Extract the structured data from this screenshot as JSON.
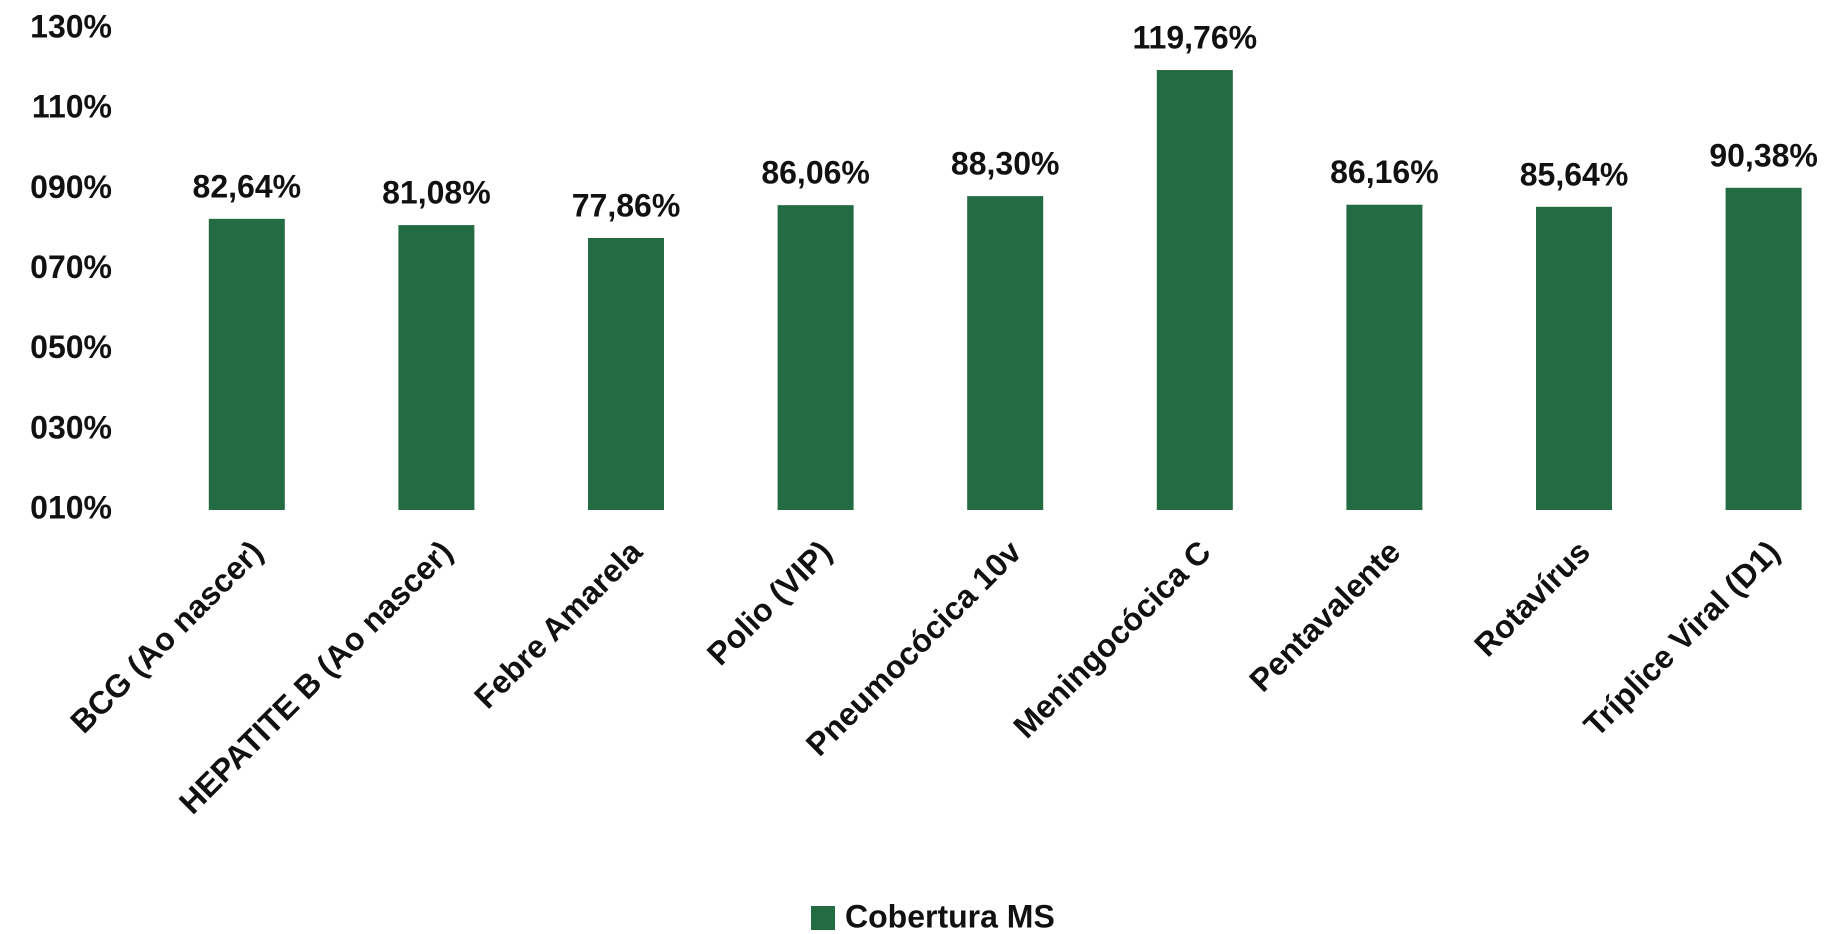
{
  "chart_data": {
    "type": "bar",
    "categories": [
      "BCG (Ao nascer)",
      "HEPATITE B (Ao nascer)",
      "Febre Amarela",
      "Polio (VIP)",
      "Pneumocócica 10v",
      "Meningocócica C",
      "Pentavalente",
      "Rotavírus",
      "Tríplice Viral (D1)"
    ],
    "series": [
      {
        "name": "Cobertura MS",
        "color": "#236b42",
        "values": [
          82.64,
          81.08,
          77.86,
          86.06,
          88.3,
          119.76,
          86.16,
          85.64,
          90.38
        ],
        "value_labels": [
          "82,64%",
          "81,08%",
          "77,86%",
          "86,06%",
          "88,30%",
          "119,76%",
          "86,16%",
          "85,64%",
          "90,38%"
        ]
      }
    ],
    "ylim": [
      10,
      130
    ],
    "yticks": [
      {
        "value": 10,
        "label": "010%"
      },
      {
        "value": 30,
        "label": "030%"
      },
      {
        "value": 50,
        "label": "050%"
      },
      {
        "value": 70,
        "label": "070%"
      },
      {
        "value": 90,
        "label": "090%"
      },
      {
        "value": 110,
        "label": "110%"
      },
      {
        "value": 130,
        "label": "130%"
      }
    ],
    "legend": "bottom"
  }
}
